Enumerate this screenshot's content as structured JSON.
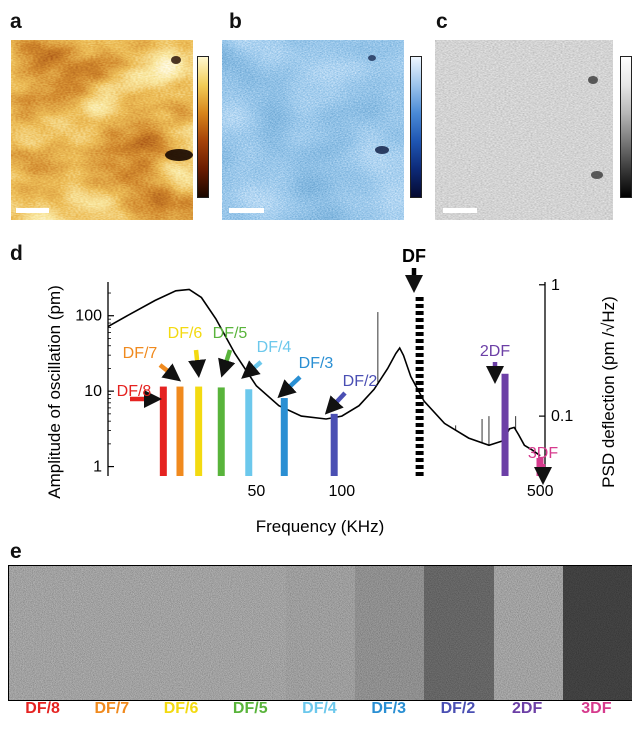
{
  "panels": {
    "a": {
      "letter": "a",
      "colormap": [
        "#1a0700",
        "#6a1c02",
        "#a54208",
        "#d8851b",
        "#f2cd58",
        "#fff8d0"
      ]
    },
    "b": {
      "letter": "b",
      "colormap": [
        "#050a30",
        "#0d2a78",
        "#1f56b3",
        "#4a8ad6",
        "#9cc4ec",
        "#eef6ff"
      ]
    },
    "c": {
      "letter": "c",
      "colormap": [
        "#000000",
        "#3a3a3a",
        "#7a7a7a",
        "#b8b8b8",
        "#e6e6e6",
        "#ffffff"
      ]
    },
    "d": {
      "letter": "d"
    },
    "e": {
      "letter": "e"
    }
  },
  "chart_data": {
    "type": "line",
    "xlabel": "Frequency (KHz)",
    "ylabel": "Amplitude of oscillation (pm)",
    "ylabel_right": "PSD deflection (pm /√Hz)",
    "x_scale": "log",
    "y_scale": "log",
    "xlim": [
      15,
      520
    ],
    "ylim": [
      0.75,
      280
    ],
    "ylim_right": [
      0.035,
      1.05
    ],
    "xticks": [
      {
        "v": 50,
        "label": "50"
      },
      {
        "v": 100,
        "label": "100"
      },
      {
        "v": 500,
        "label": "500"
      }
    ],
    "yticks": [
      {
        "v": 1,
        "label": "1"
      },
      {
        "v": 10,
        "label": "10"
      },
      {
        "v": 100,
        "label": "100"
      }
    ],
    "yticks_right": [
      {
        "v": 0.1,
        "label": "0.1"
      },
      {
        "v": 1,
        "label": "1"
      }
    ],
    "psd_curve": {
      "x": [
        15,
        18,
        22,
        26,
        29,
        32,
        36,
        42,
        50,
        60,
        72,
        88,
        100,
        115,
        130,
        145,
        155,
        160,
        165,
        175,
        195,
        230,
        280,
        330,
        370,
        390,
        405,
        420,
        440,
        470,
        500
      ],
      "y": [
        0.48,
        0.6,
        0.76,
        0.9,
        0.92,
        0.8,
        0.55,
        0.3,
        0.17,
        0.12,
        0.1,
        0.095,
        0.1,
        0.12,
        0.16,
        0.23,
        0.3,
        0.33,
        0.29,
        0.2,
        0.13,
        0.088,
        0.068,
        0.06,
        0.065,
        0.08,
        0.082,
        0.072,
        0.06,
        0.055,
        0.05
      ]
    },
    "spikes": [
      {
        "x": 134,
        "y": 0.62
      },
      {
        "x": 252,
        "y": 0.085
      },
      {
        "x": 312,
        "y": 0.095
      },
      {
        "x": 330,
        "y": 0.1
      },
      {
        "x": 410,
        "y": 0.1
      }
    ],
    "bars": [
      {
        "label": "DF/8",
        "x": 23.5,
        "value": 11.5,
        "color": "#e52321"
      },
      {
        "label": "DF/7",
        "x": 26.9,
        "value": 11.5,
        "color": "#f08a1e"
      },
      {
        "label": "DF/6",
        "x": 31.3,
        "value": 11.5,
        "color": "#f3da11"
      },
      {
        "label": "DF/5",
        "x": 37.6,
        "value": 11.2,
        "color": "#59b43b"
      },
      {
        "label": "DF/4",
        "x": 47.0,
        "value": 10.6,
        "color": "#6cc8ec"
      },
      {
        "label": "DF/3",
        "x": 62.7,
        "value": 8.1,
        "color": "#2a8fd3"
      },
      {
        "label": "DF/2",
        "x": 94.0,
        "value": 5.0,
        "color": "#4a4fb3"
      },
      {
        "label": "DF",
        "x": 188.0,
        "value": 280,
        "color": "#000000"
      },
      {
        "label": "2DF",
        "x": 376.0,
        "value": 17,
        "color": "#6c3fa6"
      },
      {
        "label": "3DF",
        "x": 564.0,
        "value": 1.3,
        "color": "#d63a8d"
      }
    ]
  },
  "strips": [
    {
      "label": "DF/8",
      "color": "#e52321",
      "brightness": 0.55
    },
    {
      "label": "DF/7",
      "color": "#f08a1e",
      "brightness": 0.55
    },
    {
      "label": "DF/6",
      "color": "#f3da11",
      "brightness": 0.55
    },
    {
      "label": "DF/5",
      "color": "#59b43b",
      "brightness": 0.55
    },
    {
      "label": "DF/4",
      "color": "#6cc8ec",
      "brightness": 0.52
    },
    {
      "label": "DF/3",
      "color": "#2a8fd3",
      "brightness": 0.42
    },
    {
      "label": "DF/2",
      "color": "#4a4fb3",
      "brightness": 0.2
    },
    {
      "label": "2DF",
      "color": "#6c3fa6",
      "brightness": 0.55
    },
    {
      "label": "3DF",
      "color": "#d63a8d",
      "brightness": 0.08
    }
  ]
}
